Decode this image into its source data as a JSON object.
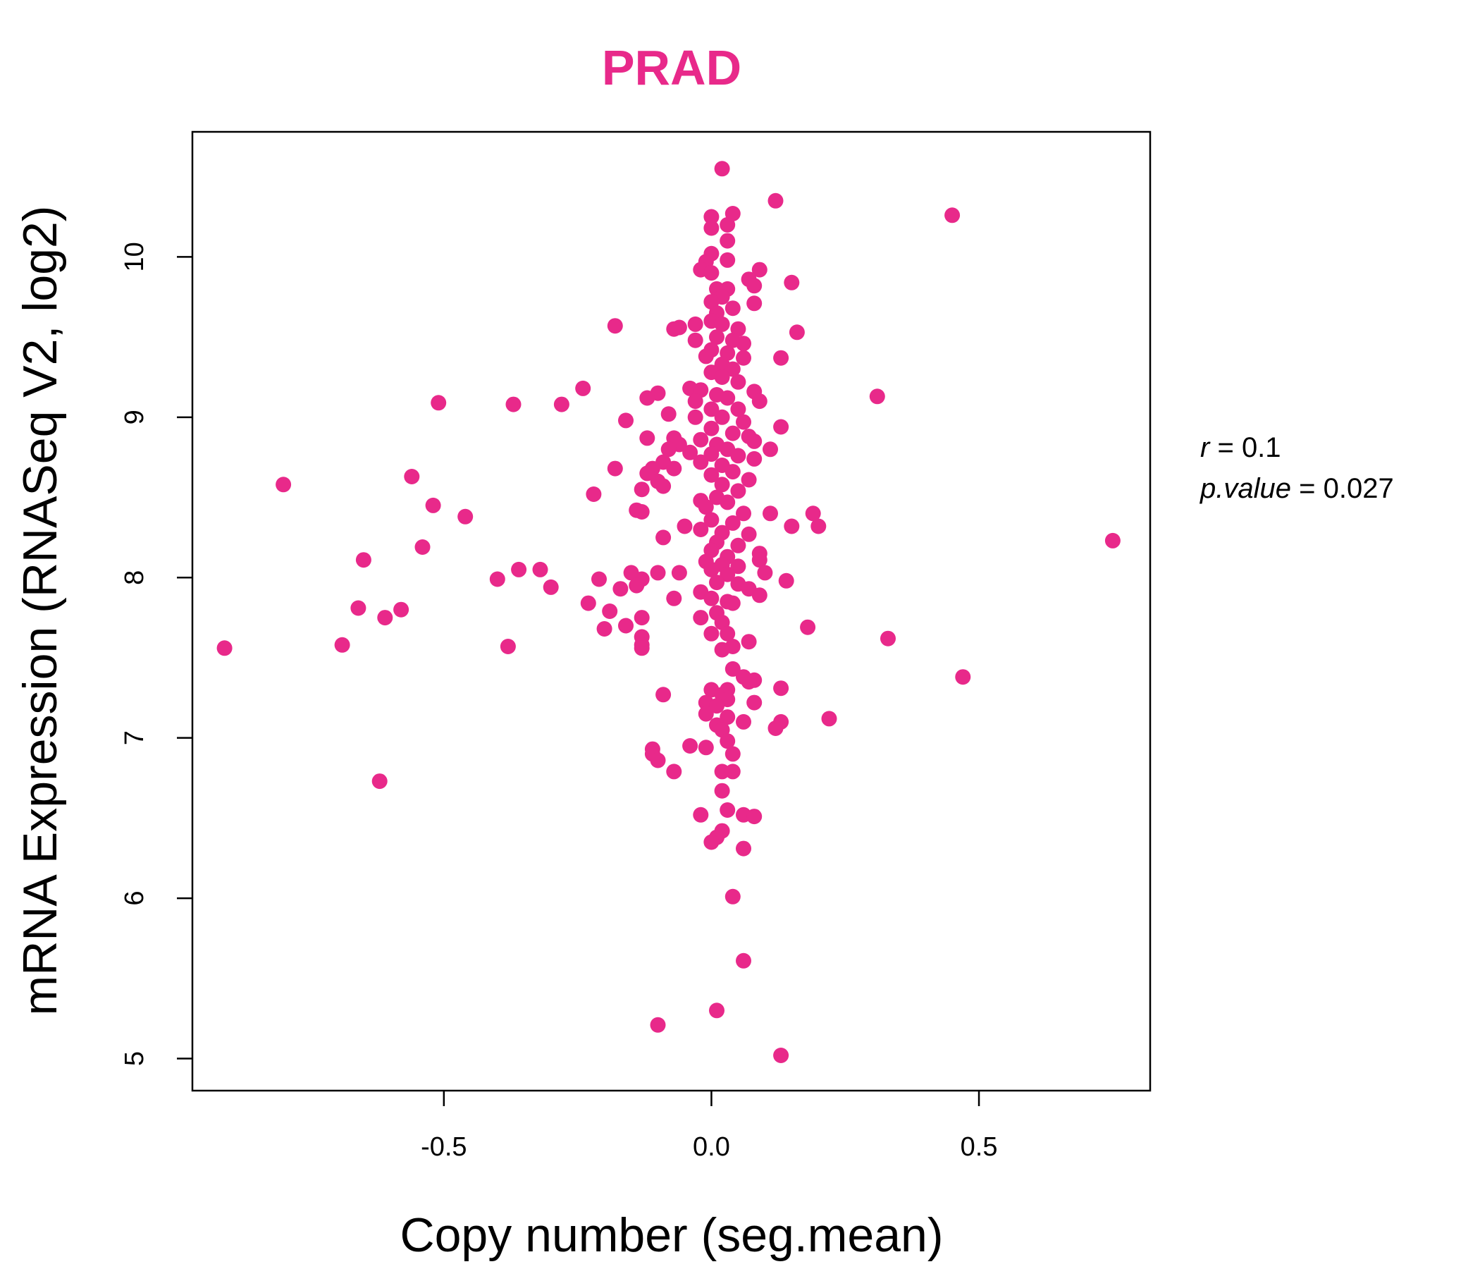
{
  "chart_data": {
    "type": "scatter",
    "title": "PRAD",
    "xlabel": "Copy number (seg.mean)",
    "ylabel": "mRNA Expression (RNASeq V2, log2)",
    "xlim": [
      -0.97,
      0.82
    ],
    "ylim": [
      4.8,
      10.78
    ],
    "x_ticks": [
      -0.5,
      0.0,
      0.5
    ],
    "x_tick_labels": [
      "-0.5",
      "0.0",
      "0.5"
    ],
    "y_ticks": [
      5,
      6,
      7,
      8,
      9,
      10
    ],
    "y_tick_labels": [
      "5",
      "6",
      "7",
      "8",
      "9",
      "10"
    ],
    "grid": false,
    "point_color": "#E8298A",
    "stats": {
      "r_label": "r",
      "r_value": "0.1",
      "p_label": "p.value",
      "p_value": "0.027"
    },
    "points": [
      {
        "x": 0.02,
        "y": 10.55
      },
      {
        "x": 0.12,
        "y": 10.35
      },
      {
        "x": 0.45,
        "y": 10.26
      },
      {
        "x": 0.04,
        "y": 10.27
      },
      {
        "x": 0.0,
        "y": 10.25
      },
      {
        "x": 0.03,
        "y": 10.2
      },
      {
        "x": 0.0,
        "y": 10.18
      },
      {
        "x": 0.03,
        "y": 10.1
      },
      {
        "x": 0.0,
        "y": 10.02
      },
      {
        "x": -0.01,
        "y": 9.97
      },
      {
        "x": 0.03,
        "y": 9.98
      },
      {
        "x": -0.02,
        "y": 9.92
      },
      {
        "x": 0.0,
        "y": 9.9
      },
      {
        "x": 0.09,
        "y": 9.92
      },
      {
        "x": 0.07,
        "y": 9.86
      },
      {
        "x": 0.08,
        "y": 9.82
      },
      {
        "x": 0.15,
        "y": 9.84
      },
      {
        "x": 0.01,
        "y": 9.8
      },
      {
        "x": 0.03,
        "y": 9.8
      },
      {
        "x": 0.02,
        "y": 9.75
      },
      {
        "x": 0.0,
        "y": 9.72
      },
      {
        "x": 0.08,
        "y": 9.71
      },
      {
        "x": 0.04,
        "y": 9.68
      },
      {
        "x": 0.01,
        "y": 9.65
      },
      {
        "x": -0.03,
        "y": 9.58
      },
      {
        "x": -0.06,
        "y": 9.56
      },
      {
        "x": -0.07,
        "y": 9.55
      },
      {
        "x": -0.18,
        "y": 9.57
      },
      {
        "x": 0.0,
        "y": 9.6
      },
      {
        "x": 0.02,
        "y": 9.58
      },
      {
        "x": 0.05,
        "y": 9.55
      },
      {
        "x": 0.16,
        "y": 9.53
      },
      {
        "x": 0.01,
        "y": 9.5
      },
      {
        "x": 0.04,
        "y": 9.48
      },
      {
        "x": -0.03,
        "y": 9.48
      },
      {
        "x": 0.06,
        "y": 9.46
      },
      {
        "x": 0.0,
        "y": 9.42
      },
      {
        "x": 0.03,
        "y": 9.4
      },
      {
        "x": 0.13,
        "y": 9.37
      },
      {
        "x": -0.01,
        "y": 9.38
      },
      {
        "x": 0.06,
        "y": 9.37
      },
      {
        "x": 0.02,
        "y": 9.33
      },
      {
        "x": 0.04,
        "y": 9.3
      },
      {
        "x": 0.0,
        "y": 9.28
      },
      {
        "x": 0.02,
        "y": 9.25
      },
      {
        "x": 0.05,
        "y": 9.22
      },
      {
        "x": -0.04,
        "y": 9.18
      },
      {
        "x": -0.02,
        "y": 9.17
      },
      {
        "x": -0.24,
        "y": 9.18
      },
      {
        "x": 0.08,
        "y": 9.16
      },
      {
        "x": -0.1,
        "y": 9.15
      },
      {
        "x": -0.12,
        "y": 9.12
      },
      {
        "x": 0.31,
        "y": 9.13
      },
      {
        "x": 0.01,
        "y": 9.14
      },
      {
        "x": 0.03,
        "y": 9.12
      },
      {
        "x": -0.03,
        "y": 9.1
      },
      {
        "x": 0.09,
        "y": 9.1
      },
      {
        "x": -0.51,
        "y": 9.09
      },
      {
        "x": -0.37,
        "y": 9.08
      },
      {
        "x": -0.28,
        "y": 9.08
      },
      {
        "x": 0.0,
        "y": 9.05
      },
      {
        "x": 0.05,
        "y": 9.05
      },
      {
        "x": -0.08,
        "y": 9.02
      },
      {
        "x": -0.03,
        "y": 9.0
      },
      {
        "x": -0.16,
        "y": 8.98
      },
      {
        "x": 0.02,
        "y": 9.0
      },
      {
        "x": 0.06,
        "y": 8.97
      },
      {
        "x": 0.13,
        "y": 8.94
      },
      {
        "x": 0.0,
        "y": 8.93
      },
      {
        "x": 0.04,
        "y": 8.9
      },
      {
        "x": 0.07,
        "y": 8.88
      },
      {
        "x": -0.12,
        "y": 8.87
      },
      {
        "x": -0.07,
        "y": 8.87
      },
      {
        "x": -0.02,
        "y": 8.86
      },
      {
        "x": 0.08,
        "y": 8.85
      },
      {
        "x": -0.06,
        "y": 8.83
      },
      {
        "x": 0.01,
        "y": 8.83
      },
      {
        "x": 0.03,
        "y": 8.8
      },
      {
        "x": -0.08,
        "y": 8.8
      },
      {
        "x": 0.11,
        "y": 8.8
      },
      {
        "x": -0.04,
        "y": 8.78
      },
      {
        "x": 0.0,
        "y": 8.77
      },
      {
        "x": 0.05,
        "y": 8.76
      },
      {
        "x": 0.08,
        "y": 8.74
      },
      {
        "x": -0.09,
        "y": 8.72
      },
      {
        "x": -0.02,
        "y": 8.72
      },
      {
        "x": 0.02,
        "y": 8.7
      },
      {
        "x": -0.18,
        "y": 8.68
      },
      {
        "x": -0.11,
        "y": 8.68
      },
      {
        "x": -0.07,
        "y": 8.68
      },
      {
        "x": 0.04,
        "y": 8.66
      },
      {
        "x": -0.12,
        "y": 8.65
      },
      {
        "x": 0.0,
        "y": 8.64
      },
      {
        "x": -0.56,
        "y": 8.63
      },
      {
        "x": 0.07,
        "y": 8.61
      },
      {
        "x": -0.1,
        "y": 8.6
      },
      {
        "x": -0.8,
        "y": 8.58
      },
      {
        "x": 0.02,
        "y": 8.58
      },
      {
        "x": -0.09,
        "y": 8.57
      },
      {
        "x": -0.13,
        "y": 8.55
      },
      {
        "x": 0.05,
        "y": 8.54
      },
      {
        "x": -0.22,
        "y": 8.52
      },
      {
        "x": 0.01,
        "y": 8.5
      },
      {
        "x": -0.02,
        "y": 8.48
      },
      {
        "x": 0.03,
        "y": 8.47
      },
      {
        "x": -0.52,
        "y": 8.45
      },
      {
        "x": -0.01,
        "y": 8.44
      },
      {
        "x": -0.14,
        "y": 8.42
      },
      {
        "x": -0.13,
        "y": 8.41
      },
      {
        "x": 0.11,
        "y": 8.4
      },
      {
        "x": 0.19,
        "y": 8.4
      },
      {
        "x": 0.06,
        "y": 8.4
      },
      {
        "x": -0.46,
        "y": 8.38
      },
      {
        "x": 0.0,
        "y": 8.36
      },
      {
        "x": 0.04,
        "y": 8.34
      },
      {
        "x": -0.05,
        "y": 8.32
      },
      {
        "x": 0.15,
        "y": 8.32
      },
      {
        "x": 0.2,
        "y": 8.32
      },
      {
        "x": -0.02,
        "y": 8.3
      },
      {
        "x": 0.02,
        "y": 8.28
      },
      {
        "x": 0.07,
        "y": 8.27
      },
      {
        "x": -0.09,
        "y": 8.25
      },
      {
        "x": 0.75,
        "y": 8.23
      },
      {
        "x": 0.01,
        "y": 8.22
      },
      {
        "x": 0.05,
        "y": 8.2
      },
      {
        "x": -0.54,
        "y": 8.19
      },
      {
        "x": 0.0,
        "y": 8.17
      },
      {
        "x": 0.09,
        "y": 8.15
      },
      {
        "x": 0.03,
        "y": 8.13
      },
      {
        "x": -0.65,
        "y": 8.11
      },
      {
        "x": 0.09,
        "y": 8.11
      },
      {
        "x": -0.01,
        "y": 8.1
      },
      {
        "x": 0.02,
        "y": 8.08
      },
      {
        "x": 0.05,
        "y": 8.07
      },
      {
        "x": -0.36,
        "y": 8.05
      },
      {
        "x": -0.32,
        "y": 8.05
      },
      {
        "x": 0.0,
        "y": 8.05
      },
      {
        "x": -0.1,
        "y": 8.03
      },
      {
        "x": -0.15,
        "y": 8.03
      },
      {
        "x": -0.06,
        "y": 8.03
      },
      {
        "x": 0.1,
        "y": 8.03
      },
      {
        "x": 0.03,
        "y": 8.02
      },
      {
        "x": -0.4,
        "y": 7.99
      },
      {
        "x": -0.21,
        "y": 7.99
      },
      {
        "x": -0.13,
        "y": 7.99
      },
      {
        "x": 0.14,
        "y": 7.98
      },
      {
        "x": 0.01,
        "y": 7.97
      },
      {
        "x": 0.05,
        "y": 7.96
      },
      {
        "x": -0.3,
        "y": 7.94
      },
      {
        "x": -0.17,
        "y": 7.93
      },
      {
        "x": -0.14,
        "y": 7.95
      },
      {
        "x": 0.07,
        "y": 7.93
      },
      {
        "x": -0.02,
        "y": 7.91
      },
      {
        "x": 0.09,
        "y": 7.89
      },
      {
        "x": -0.07,
        "y": 7.87
      },
      {
        "x": 0.0,
        "y": 7.87
      },
      {
        "x": 0.03,
        "y": 7.85
      },
      {
        "x": -0.23,
        "y": 7.84
      },
      {
        "x": 0.04,
        "y": 7.84
      },
      {
        "x": -0.66,
        "y": 7.81
      },
      {
        "x": -0.58,
        "y": 7.8
      },
      {
        "x": -0.19,
        "y": 7.79
      },
      {
        "x": 0.01,
        "y": 7.78
      },
      {
        "x": -0.61,
        "y": 7.75
      },
      {
        "x": -0.02,
        "y": 7.75
      },
      {
        "x": -0.13,
        "y": 7.75
      },
      {
        "x": 0.02,
        "y": 7.72
      },
      {
        "x": -0.16,
        "y": 7.7
      },
      {
        "x": 0.18,
        "y": 7.69
      },
      {
        "x": -0.2,
        "y": 7.68
      },
      {
        "x": 0.0,
        "y": 7.65
      },
      {
        "x": 0.03,
        "y": 7.65
      },
      {
        "x": -0.13,
        "y": 7.63
      },
      {
        "x": 0.33,
        "y": 7.62
      },
      {
        "x": 0.07,
        "y": 7.6
      },
      {
        "x": -0.69,
        "y": 7.58
      },
      {
        "x": -0.38,
        "y": 7.57
      },
      {
        "x": -0.13,
        "y": 7.58
      },
      {
        "x": 0.04,
        "y": 7.57
      },
      {
        "x": -0.91,
        "y": 7.56
      },
      {
        "x": -0.13,
        "y": 7.56
      },
      {
        "x": 0.02,
        "y": 7.55
      },
      {
        "x": 0.04,
        "y": 7.43
      },
      {
        "x": 0.06,
        "y": 7.38
      },
      {
        "x": 0.47,
        "y": 7.38
      },
      {
        "x": 0.08,
        "y": 7.36
      },
      {
        "x": 0.07,
        "y": 7.35
      },
      {
        "x": 0.0,
        "y": 7.3
      },
      {
        "x": 0.03,
        "y": 7.3
      },
      {
        "x": 0.13,
        "y": 7.31
      },
      {
        "x": -0.09,
        "y": 7.27
      },
      {
        "x": 0.02,
        "y": 7.27
      },
      {
        "x": 0.03,
        "y": 7.24
      },
      {
        "x": -0.01,
        "y": 7.22
      },
      {
        "x": 0.01,
        "y": 7.2
      },
      {
        "x": 0.08,
        "y": 7.22
      },
      {
        "x": -0.01,
        "y": 7.15
      },
      {
        "x": 0.03,
        "y": 7.13
      },
      {
        "x": 0.22,
        "y": 7.12
      },
      {
        "x": 0.13,
        "y": 7.1
      },
      {
        "x": 0.01,
        "y": 7.08
      },
      {
        "x": 0.06,
        "y": 7.1
      },
      {
        "x": 0.12,
        "y": 7.06
      },
      {
        "x": 0.02,
        "y": 7.05
      },
      {
        "x": 0.03,
        "y": 6.98
      },
      {
        "x": -0.04,
        "y": 6.95
      },
      {
        "x": -0.01,
        "y": 6.94
      },
      {
        "x": -0.11,
        "y": 6.93
      },
      {
        "x": -0.11,
        "y": 6.9
      },
      {
        "x": 0.04,
        "y": 6.9
      },
      {
        "x": -0.1,
        "y": 6.86
      },
      {
        "x": -0.07,
        "y": 6.79
      },
      {
        "x": 0.02,
        "y": 6.79
      },
      {
        "x": 0.04,
        "y": 6.79
      },
      {
        "x": -0.62,
        "y": 6.73
      },
      {
        "x": 0.02,
        "y": 6.67
      },
      {
        "x": 0.03,
        "y": 6.55
      },
      {
        "x": -0.02,
        "y": 6.52
      },
      {
        "x": 0.06,
        "y": 6.52
      },
      {
        "x": 0.08,
        "y": 6.51
      },
      {
        "x": 0.02,
        "y": 6.42
      },
      {
        "x": 0.01,
        "y": 6.38
      },
      {
        "x": 0.0,
        "y": 6.35
      },
      {
        "x": 0.06,
        "y": 6.31
      },
      {
        "x": 0.04,
        "y": 6.01
      },
      {
        "x": 0.06,
        "y": 5.61
      },
      {
        "x": 0.01,
        "y": 5.3
      },
      {
        "x": -0.1,
        "y": 5.21
      },
      {
        "x": 0.13,
        "y": 5.02
      }
    ]
  }
}
